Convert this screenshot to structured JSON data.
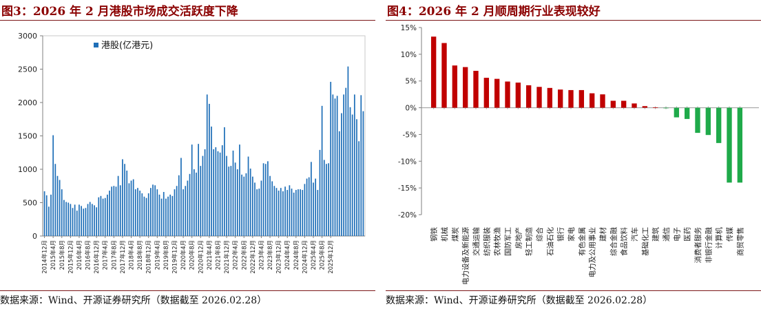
{
  "left": {
    "title": "图3：2026 年 2 月港股市场成交活跃度下降",
    "source": "数据来源：Wind、开源证券研究所（数据截至 2026.02.28）",
    "legend_label": "港股(亿港元)",
    "bar_color": "#1f6fb8"
  },
  "right": {
    "title": "图4：2026 年 2 月顺周期行业表现较好",
    "source": "数据来源：Wind、开源证券研究所（数据截至 2026.02.28）",
    "positive_color": "#c00000",
    "negative_color": "#1faa4a"
  },
  "chart_data": [
    {
      "type": "bar",
      "title": "",
      "xlabel": "",
      "ylabel": "",
      "ylim": [
        0,
        3000
      ],
      "yticks": [
        0,
        500,
        1000,
        1500,
        2000,
        2500,
        3000
      ],
      "grid": false,
      "legend": "top-left",
      "series": [
        {
          "name": "港股(亿港元)",
          "values": [
            670,
            610,
            440,
            620,
            1510,
            1080,
            900,
            840,
            700,
            540,
            510,
            500,
            480,
            420,
            470,
            380,
            470,
            450,
            410,
            420,
            480,
            510,
            480,
            460,
            430,
            580,
            600,
            560,
            570,
            620,
            680,
            740,
            750,
            740,
            900,
            760,
            1150,
            1080,
            980,
            790,
            830,
            850,
            700,
            720,
            680,
            640,
            590,
            570,
            640,
            720,
            770,
            760,
            700,
            620,
            560,
            660,
            560,
            590,
            620,
            600,
            700,
            750,
            910,
            1170,
            700,
            750,
            830,
            930,
            1370,
            1000,
            950,
            1380,
            1050,
            1200,
            1300,
            2120,
            1980,
            1640,
            1300,
            1330,
            1270,
            1250,
            1360,
            1630,
            1200,
            1040,
            1050,
            1280,
            1100,
            1000,
            1370,
            920,
            890,
            940,
            1190,
            1010,
            890,
            800,
            700,
            710,
            830,
            1090,
            1080,
            1120,
            900,
            820,
            750,
            720,
            680,
            720,
            670,
            740,
            690,
            760,
            710,
            650,
            690,
            700,
            700,
            690,
            780,
            860,
            880,
            1110,
            800,
            860,
            690,
            1290,
            1950,
            1140,
            1080,
            1090,
            2310,
            2120,
            2060,
            2100,
            1570,
            1840,
            2120,
            2220,
            2540,
            1930,
            1820,
            2120,
            1750,
            1420,
            2110,
            1870
          ]
        }
      ],
      "x_tick_labels": [
        "2014年12月",
        "2015年4月",
        "2015年8月",
        "2015年12月",
        "2016年4月",
        "2016年8月",
        "2016年12月",
        "2017年4月",
        "2017年8月",
        "2017年12月",
        "2018年4月",
        "2018年8月",
        "2018年12月",
        "2019年4月",
        "2019年8月",
        "2019年12月",
        "2020年4月",
        "2020年8月",
        "2020年12月",
        "2021年4月",
        "2021年8月",
        "2021年12月",
        "2022年4月",
        "2022年8月",
        "2022年12月",
        "2023年4月",
        "2023年8月",
        "2023年12月",
        "2024年4月",
        "2024年8月",
        "2024年12月",
        "2025年4月",
        "2025年8月",
        "2025年12月"
      ]
    },
    {
      "type": "bar",
      "title": "",
      "xlabel": "",
      "ylabel": "",
      "ylim": [
        -20,
        15
      ],
      "yticks": [
        -20,
        -15,
        -10,
        -5,
        0,
        5,
        10,
        15
      ],
      "y_tick_labels": [
        "-20%",
        "-15%",
        "-10%",
        "-5%",
        "0%",
        "5%",
        "10%",
        "15%"
      ],
      "grid": false,
      "categories": [
        "钢铁",
        "机械",
        "煤炭",
        "电力设备及新能源",
        "交通运输",
        "纺织服装",
        "农林牧渔",
        "国防军工",
        "房地产",
        "轻工制造",
        "综合",
        "石油石化",
        "银行",
        "家电",
        "有色金属",
        "电力及公用事业",
        "建材",
        "综合金融",
        "食品饮料",
        "汽车",
        "基础化工",
        "建筑",
        "通信",
        "电子",
        "医药",
        "消费者服务",
        "非银行金融",
        "计算机",
        "传媒",
        "商贸零售"
      ],
      "values": [
        13.3,
        12.1,
        7.9,
        7.6,
        6.9,
        5.6,
        5.4,
        4.9,
        4.7,
        4.2,
        3.9,
        3.7,
        3.4,
        3.3,
        3.3,
        2.7,
        2.5,
        1.3,
        1.3,
        0.8,
        0.3,
        0.05,
        -0.05,
        -1.8,
        -2.1,
        -4.7,
        -5.1,
        -6.6,
        -14.0,
        -14.0
      ]
    }
  ]
}
